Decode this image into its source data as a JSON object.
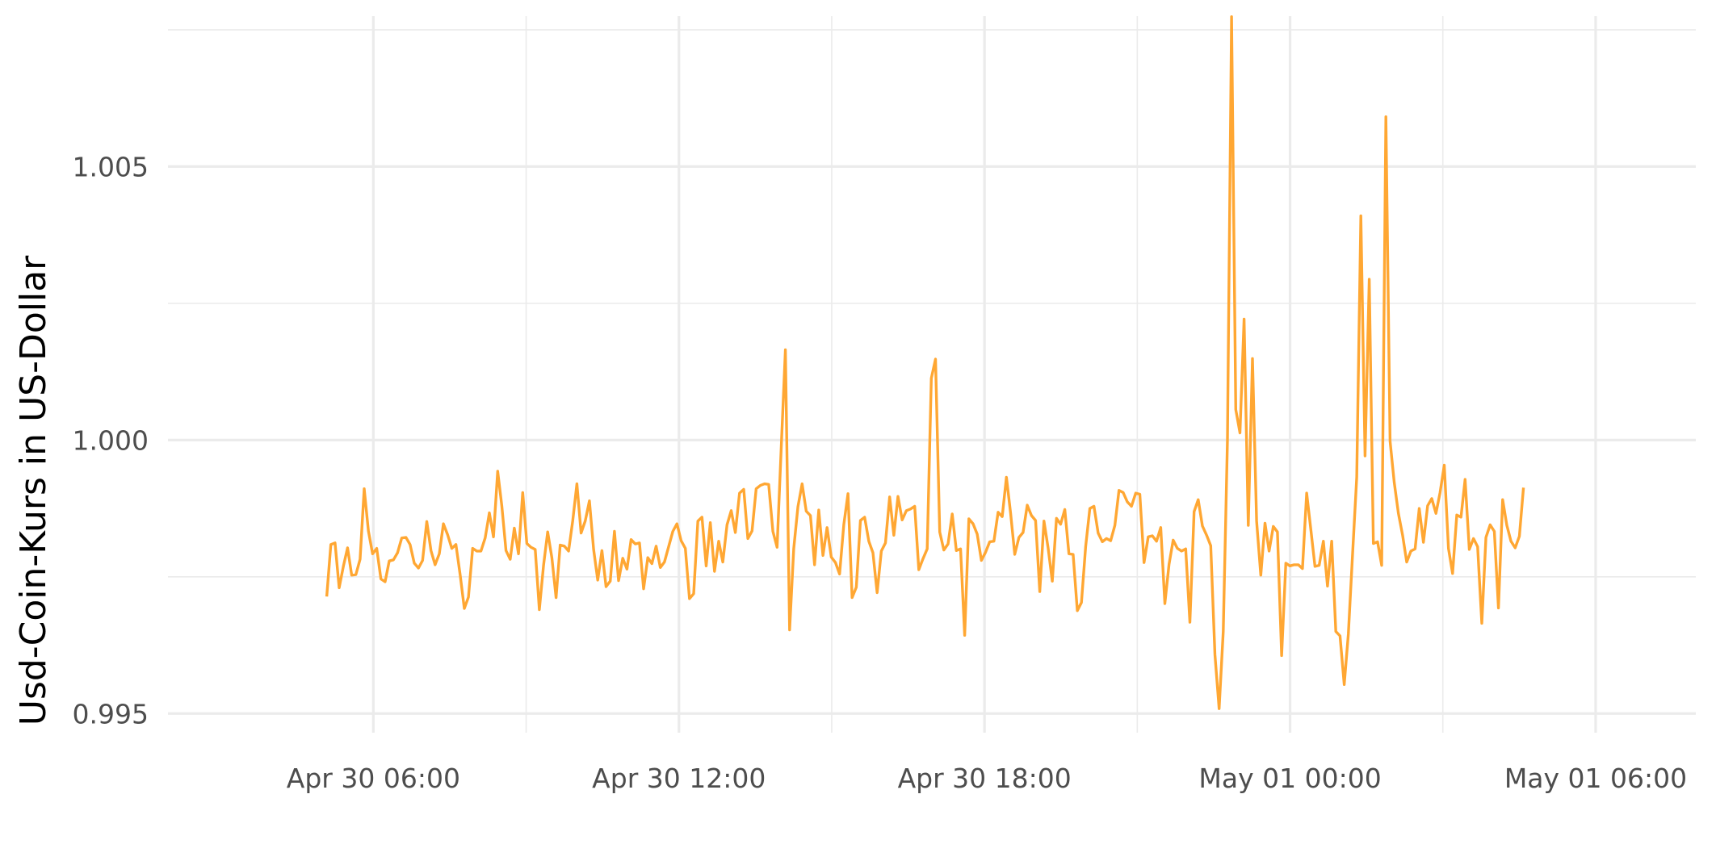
{
  "chart_data": {
    "type": "line",
    "title": "",
    "xlabel": "",
    "ylabel": "Usd-Coin-Kurs in US-Dollar",
    "x_range": [
      "2024-04-30T01:58",
      "2024-05-01T07:58"
    ],
    "ylim": [
      0.99465,
      1.00775
    ],
    "x_ticks": [
      {
        "x": "2024-04-30T06:00",
        "label": "Apr 30 06:00"
      },
      {
        "x": "2024-04-30T12:00",
        "label": "Apr 30 12:00"
      },
      {
        "x": "2024-04-30T18:00",
        "label": "Apr 30 18:00"
      },
      {
        "x": "2024-05-01T00:00",
        "label": "May 01 00:00"
      },
      {
        "x": "2024-05-01T06:00",
        "label": "May 01 06:00"
      }
    ],
    "x_minor_ticks": [
      "2024-04-30T09:00",
      "2024-04-30T15:00",
      "2024-04-30T21:00",
      "2024-05-01T03:00"
    ],
    "y_ticks": [
      {
        "y": 0.995,
        "label": "0.995"
      },
      {
        "y": 1.0,
        "label": "1.000"
      },
      {
        "y": 1.005,
        "label": "1.005"
      }
    ],
    "y_minor_ticks": [
      0.9975,
      1.0025,
      1.0075
    ],
    "grid": true,
    "legend": "none",
    "series": [
      {
        "color": "#ffa733",
        "x_start": "2024-04-30T05:05",
        "x_end": "2024-05-01T04:35",
        "values": [
          0.99714,
          0.99809,
          0.99812,
          0.9973,
          0.99769,
          0.99803,
          0.99753,
          0.99754,
          0.99782,
          0.99911,
          0.99834,
          0.99792,
          0.99802,
          0.99746,
          0.99741,
          0.99779,
          0.99781,
          0.99794,
          0.99821,
          0.99822,
          0.99809,
          0.99775,
          0.99766,
          0.9978,
          0.99851,
          0.99798,
          0.99772,
          0.99792,
          0.99847,
          0.99827,
          0.99802,
          0.99809,
          0.99754,
          0.99692,
          0.99713,
          0.99802,
          0.99797,
          0.99797,
          0.99821,
          0.99867,
          0.99823,
          0.99943,
          0.9988,
          0.99798,
          0.99782,
          0.99839,
          0.99792,
          0.99904,
          0.99811,
          0.99804,
          0.998,
          0.9969,
          0.99771,
          0.99832,
          0.99785,
          0.99712,
          0.99808,
          0.99806,
          0.99797,
          0.99852,
          0.9992,
          0.9983,
          0.99852,
          0.99889,
          0.998,
          0.99744,
          0.99798,
          0.99732,
          0.99742,
          0.99833,
          0.99743,
          0.99784,
          0.99764,
          0.99818,
          0.9981,
          0.99812,
          0.99728,
          0.99785,
          0.99774,
          0.99806,
          0.99767,
          0.99777,
          0.99805,
          0.99833,
          0.99847,
          0.99816,
          0.99802,
          0.9971,
          0.99719,
          0.99852,
          0.99859,
          0.9977,
          0.99849,
          0.9976,
          0.99815,
          0.99777,
          0.99845,
          0.99871,
          0.99831,
          0.99903,
          0.9991,
          0.9982,
          0.99834,
          0.99911,
          0.99917,
          0.9992,
          0.99919,
          0.99833,
          0.99804,
          0.99985,
          1.00165,
          0.99653,
          0.99801,
          0.99878,
          0.9992,
          0.9987,
          0.99862,
          0.99772,
          0.99872,
          0.99789,
          0.9984,
          0.99786,
          0.99776,
          0.99755,
          0.99845,
          0.99902,
          0.99712,
          0.99731,
          0.99853,
          0.99859,
          0.99815,
          0.99794,
          0.99721,
          0.99797,
          0.99812,
          0.99896,
          0.99826,
          0.99897,
          0.99854,
          0.99871,
          0.99874,
          0.99879,
          0.99763,
          0.99783,
          0.99801,
          1.00113,
          1.00148,
          0.99832,
          0.99799,
          0.9981,
          0.99865,
          0.99798,
          0.99801,
          0.99643,
          0.99856,
          0.99847,
          0.99828,
          0.9978,
          0.99795,
          0.99814,
          0.99815,
          0.99868,
          0.9986,
          0.99932,
          0.99866,
          0.99791,
          0.99822,
          0.99831,
          0.99881,
          0.99862,
          0.99853,
          0.99723,
          0.99852,
          0.99803,
          0.99742,
          0.99857,
          0.99846,
          0.99873,
          0.99792,
          0.99791,
          0.99688,
          0.99703,
          0.99805,
          0.99875,
          0.99879,
          0.9983,
          0.99814,
          0.9982,
          0.99816,
          0.99844,
          0.99908,
          0.99904,
          0.99887,
          0.99879,
          0.99903,
          0.99901,
          0.99776,
          0.99823,
          0.99825,
          0.99815,
          0.9984,
          0.99701,
          0.99773,
          0.99817,
          0.99802,
          0.99797,
          0.99801,
          0.99667,
          0.99869,
          0.99891,
          0.99843,
          0.99826,
          0.99807,
          0.99608,
          0.99509,
          0.9965,
          1.0,
          1.00774,
          1.00056,
          1.00013,
          1.00221,
          0.99844,
          1.00149,
          0.99852,
          0.99753,
          0.99848,
          0.99797,
          0.99842,
          0.99832,
          0.99606,
          0.99775,
          0.9977,
          0.99772,
          0.99772,
          0.99765,
          0.99903,
          0.99836,
          0.99769,
          0.99771,
          0.99815,
          0.99733,
          0.99815,
          0.9965,
          0.99642,
          0.99553,
          0.99645,
          0.9979,
          0.99932,
          1.0041,
          0.99971,
          1.00294,
          0.99811,
          0.99814,
          0.99771,
          1.00591,
          0.99998,
          0.99923,
          0.99866,
          0.99826,
          0.99777,
          0.99797,
          0.99801,
          0.99875,
          0.99813,
          0.9988,
          0.99893,
          0.99866,
          0.99904,
          0.99954,
          0.99802,
          0.99756,
          0.99863,
          0.99859,
          0.99928,
          0.998,
          0.9982,
          0.99805,
          0.99665,
          0.99822,
          0.99845,
          0.99833,
          0.99693,
          0.99891,
          0.99844,
          0.99815,
          0.99803,
          0.99824,
          0.99913
        ]
      }
    ]
  }
}
